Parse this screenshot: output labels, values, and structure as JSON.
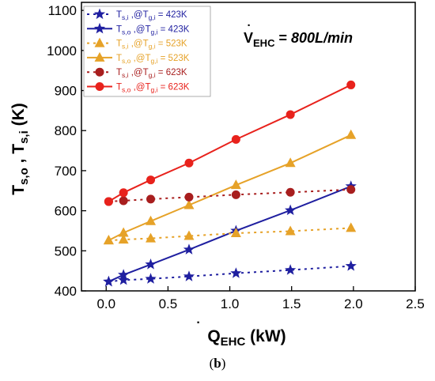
{
  "caption": {
    "open": "(",
    "letter": "b",
    "close": ")"
  },
  "chart_data": {
    "type": "line",
    "xlabel": {
      "main": "Q",
      "sub": "EHC",
      "unit": " (kW)"
    },
    "ylabel": {
      "part1": "T",
      "sub1": "s,o",
      "sep": " , ",
      "part2": "T",
      "sub2": "s,i",
      "unit": " (K)"
    },
    "annotation": {
      "main": "V",
      "sub": "EHC",
      "eq": " = ",
      "value": "800L/min"
    },
    "xlim": [
      -0.2,
      2.5
    ],
    "ylim": [
      400,
      1120
    ],
    "xticks": [
      "0.0",
      "0.5",
      "1.0",
      "1.5",
      "2.0",
      "2.5"
    ],
    "yticks": [
      "400",
      "500",
      "600",
      "700",
      "800",
      "900",
      "1000",
      "1100"
    ],
    "legend_position": "top-left",
    "x": [
      0.02,
      0.14,
      0.36,
      0.67,
      1.05,
      1.49,
      1.98
    ],
    "series": [
      {
        "key": "s1",
        "name": {
          "t": "T",
          "sub": "s,i",
          "mid": " ,@T",
          "sub2": "g,i",
          "val": " =  423K"
        },
        "marker": "star",
        "line": "dotted",
        "color": "#1f1fa0",
        "values": [
          423,
          427,
          430,
          436,
          444,
          452,
          462
        ]
      },
      {
        "key": "s2",
        "name": {
          "t": "T",
          "sub": "s,o",
          "mid": " ,@T",
          "sub2": "g,i",
          "val": " =  423K"
        },
        "marker": "star",
        "line": "solid",
        "color": "#1f1fa0",
        "values": [
          423,
          440,
          466,
          503,
          550,
          601,
          661
        ]
      },
      {
        "key": "s3",
        "name": {
          "t": "T",
          "sub": "s,i",
          "mid": " ,@T",
          "sub2": "g,i",
          "val": " =  523K"
        },
        "marker": "triangle",
        "line": "dotted",
        "color": "#e6a228",
        "values": [
          526,
          528,
          531,
          537,
          544,
          549,
          557
        ]
      },
      {
        "key": "s4",
        "name": {
          "t": "T",
          "sub": "s,o",
          "mid": " ,@T",
          "sub2": "g,i",
          "val": " =  523K"
        },
        "marker": "triangle",
        "line": "solid",
        "color": "#e6a228",
        "values": [
          526,
          545,
          574,
          614,
          664,
          719,
          789
        ]
      },
      {
        "key": "s5",
        "name": {
          "t": "T",
          "sub": "s,i",
          "mid": " ,@T",
          "sub2": "g,i",
          "val": " =  623K"
        },
        "marker": "circle",
        "line": "dotted",
        "color": "#a81e1e",
        "values": [
          623,
          625,
          629,
          634,
          640,
          646,
          653
        ]
      },
      {
        "key": "s6",
        "name": {
          "t": "T",
          "sub": "s,o",
          "mid": " ,@T",
          "sub2": "g,i",
          "val": " =  623K"
        },
        "marker": "circle",
        "line": "solid",
        "color": "#e8221c",
        "values": [
          623,
          645,
          677,
          719,
          778,
          840,
          914
        ]
      }
    ]
  }
}
